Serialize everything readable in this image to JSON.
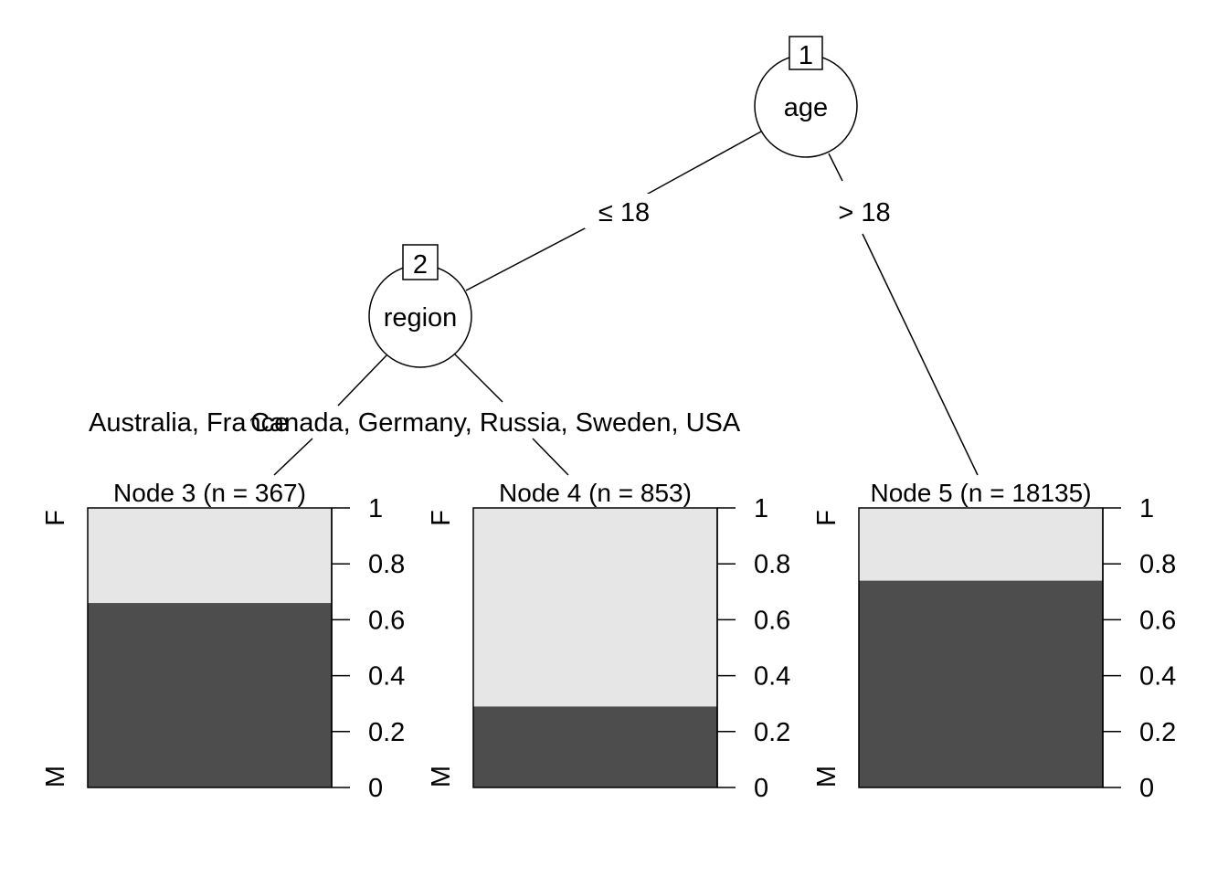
{
  "colors": {
    "M": "#4d4d4d",
    "F": "#e6e6e6"
  },
  "inner_nodes": [
    {
      "id": "1",
      "variable": "age"
    },
    {
      "id": "2",
      "variable": "region"
    }
  ],
  "edges": [
    {
      "from": "1",
      "to": "2",
      "label": "≤ 18"
    },
    {
      "from": "1",
      "to": "5",
      "label": "> 18"
    },
    {
      "from": "2",
      "to": "3",
      "label": "Australia, France"
    },
    {
      "from": "2",
      "to": "4",
      "label": "Canada, Germany, Russia, Sweden, USA"
    }
  ],
  "chart_data": {
    "type": "bar",
    "stacked": true,
    "classes": [
      "M",
      "F"
    ],
    "ylim": [
      0,
      1
    ],
    "yticks": [
      "0",
      "0.2",
      "0.4",
      "0.6",
      "0.8",
      "1"
    ],
    "leaves": [
      {
        "title": "Node 3 (n = 367)",
        "node": "3",
        "n": 367,
        "M": 0.66,
        "F": 0.34
      },
      {
        "title": "Node 4 (n = 853)",
        "node": "4",
        "n": 853,
        "M": 0.29,
        "F": 0.71
      },
      {
        "title": "Node 5 (n = 18135)",
        "node": "5",
        "n": 18135,
        "M": 0.74,
        "F": 0.26
      }
    ]
  }
}
